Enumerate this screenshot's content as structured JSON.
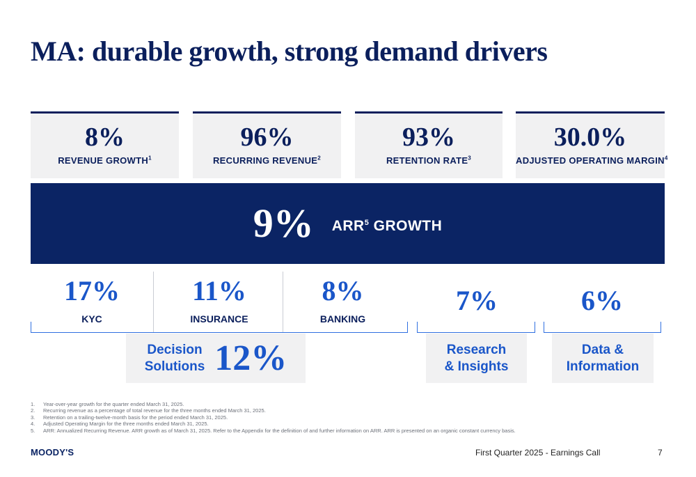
{
  "title": "MA: durable growth, strong demand drivers",
  "kpis": [
    {
      "value": "8%",
      "label": "REVENUE GROWTH",
      "sup": "1"
    },
    {
      "value": "96%",
      "label": "RECURRING REVENUE",
      "sup": "2"
    },
    {
      "value": "93%",
      "label": "RETENTION RATE",
      "sup": "3"
    },
    {
      "value": "30.0%",
      "label": "ADJUSTED OPERATING MARGIN",
      "sup": "4"
    }
  ],
  "arr": {
    "value": "9%",
    "label_pre": "ARR",
    "sup": "5",
    "label_post": " GROWTH"
  },
  "segments": [
    {
      "value": "17%",
      "name": "KYC"
    },
    {
      "value": "11%",
      "name": "INSURANCE"
    },
    {
      "value": "8%",
      "name": "BANKING"
    },
    {
      "value": "7%"
    },
    {
      "value": "6%"
    }
  ],
  "groups": [
    {
      "name": "Decision\nSolutions",
      "value": "12%"
    },
    {
      "name": "Research\n& Insights"
    },
    {
      "name": "Data &\nInformation"
    }
  ],
  "footnotes": [
    {
      "n": "1.",
      "text": "Year-over-year growth for the quarter ended March 31, 2025."
    },
    {
      "n": "2.",
      "text": "Recurring revenue as a percentage of total revenue for the three months ended March 31, 2025."
    },
    {
      "n": "3.",
      "text": "Retention on a trailing-twelve-month basis for the period ended March 31, 2025."
    },
    {
      "n": "4.",
      "text": "Adjusted Operating Margin for the three months ended March 31, 2025."
    },
    {
      "n": "5.",
      "text": "ARR: Annualized Recurring Revenue. ARR growth as of March 31, 2025. Refer to the Appendix for the definition of and further information on ARR. ARR is presented on an organic constant currency basis."
    }
  ],
  "footer": {
    "logo": "MOODY'S",
    "event": "First Quarter 2025 - Earnings Call",
    "page": "7"
  },
  "colors": {
    "navy": "#0b2464",
    "blue": "#1a56c9",
    "bracket": "#2f6fe0",
    "panel": "#f1f1f2"
  }
}
